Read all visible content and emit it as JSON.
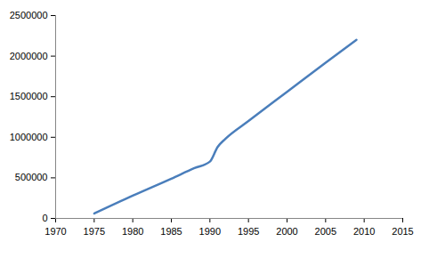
{
  "chart_data": {
    "type": "line",
    "x": [
      1975,
      1980,
      1985,
      1988,
      1990,
      1991,
      1992,
      1995,
      2000,
      2005,
      2009
    ],
    "values": [
      60000,
      280000,
      490000,
      620000,
      700000,
      880000,
      980000,
      1200000,
      1560000,
      1920000,
      2200000
    ],
    "color": "#4a7ebb",
    "xlim": [
      1970,
      2015
    ],
    "xticks": [
      1970,
      1975,
      1980,
      1985,
      1990,
      1995,
      2000,
      2005,
      2010,
      2015
    ],
    "ylim": [
      0,
      2500000
    ],
    "yticks": [
      0,
      500000,
      1000000,
      1500000,
      2000000,
      2500000
    ],
    "grid": false
  }
}
